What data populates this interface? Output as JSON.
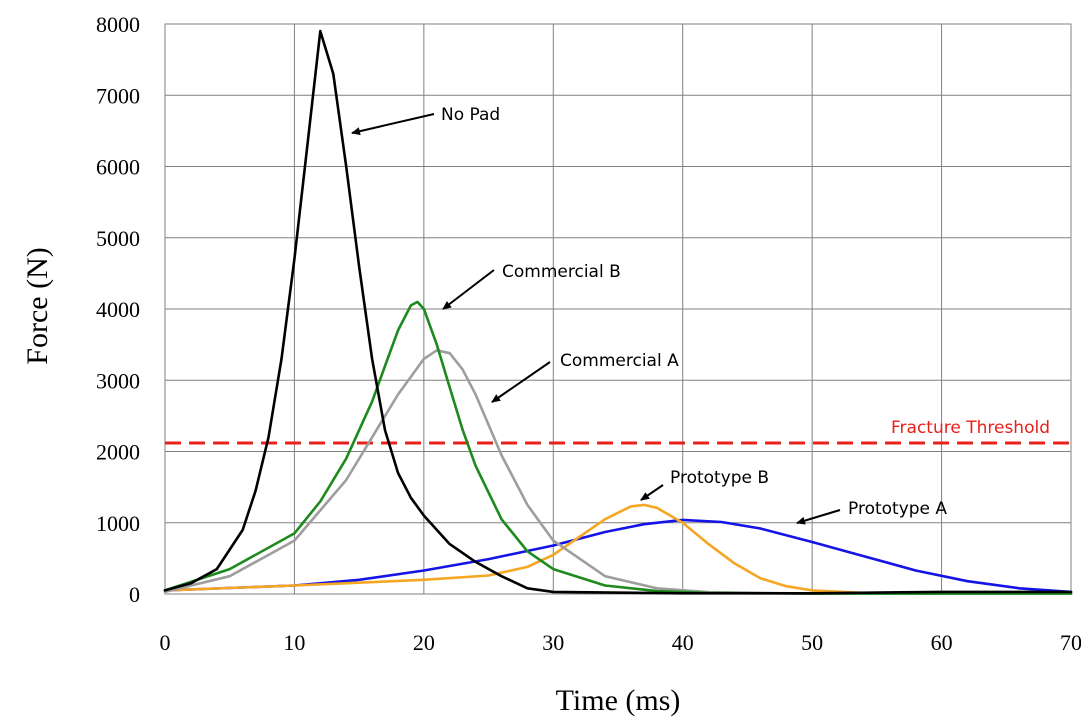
{
  "chart_data": {
    "type": "line",
    "xlabel": "Time (ms)",
    "ylabel": "Force (N)",
    "xlim": [
      0,
      70
    ],
    "ylim": [
      0,
      8000
    ],
    "xticks": [
      0,
      10,
      20,
      30,
      40,
      50,
      60,
      70
    ],
    "yticks": [
      0,
      1000,
      2000,
      3000,
      4000,
      5000,
      6000,
      7000,
      8000
    ],
    "grid": true,
    "threshold": {
      "label": "Fracture Threshold",
      "value": 2120,
      "color": "#e8201b"
    },
    "series": [
      {
        "name": "No Pad",
        "color": "#000000",
        "x": [
          0,
          2,
          4,
          6,
          7,
          8,
          9,
          10,
          11,
          12,
          13,
          14,
          15,
          16,
          17,
          18,
          19,
          20,
          21,
          22,
          24,
          26,
          28,
          30,
          40,
          50,
          60,
          70
        ],
        "y": [
          50,
          150,
          350,
          900,
          1450,
          2200,
          3300,
          4700,
          6300,
          7900,
          7300,
          6000,
          4600,
          3300,
          2300,
          1700,
          1350,
          1100,
          900,
          700,
          450,
          250,
          80,
          30,
          10,
          10,
          30,
          30
        ]
      },
      {
        "name": "Commercial B",
        "color": "#1e8a1e",
        "x": [
          0,
          5,
          10,
          12,
          14,
          16,
          17,
          18,
          19,
          19.5,
          20,
          21,
          22,
          23,
          24,
          26,
          28,
          30,
          34,
          38,
          42,
          50,
          60,
          70
        ],
        "y": [
          50,
          350,
          850,
          1300,
          1900,
          2700,
          3200,
          3700,
          4050,
          4100,
          4000,
          3500,
          2900,
          2300,
          1800,
          1050,
          600,
          350,
          120,
          40,
          15,
          5,
          5,
          5
        ]
      },
      {
        "name": "Commercial A",
        "color": "#9e9e9e",
        "x": [
          0,
          5,
          10,
          14,
          16,
          18,
          20,
          21,
          22,
          23,
          24,
          26,
          28,
          30,
          34,
          38,
          42,
          50,
          60,
          70
        ],
        "y": [
          30,
          250,
          750,
          1600,
          2200,
          2800,
          3300,
          3420,
          3380,
          3150,
          2800,
          1950,
          1250,
          750,
          250,
          80,
          25,
          5,
          5,
          5
        ]
      },
      {
        "name": "Prototype A",
        "color": "#1414e6",
        "x": [
          0,
          10,
          15,
          20,
          25,
          30,
          34,
          37,
          40,
          43,
          46,
          50,
          54,
          58,
          62,
          66,
          70
        ],
        "y": [
          50,
          120,
          200,
          330,
          490,
          680,
          870,
          980,
          1040,
          1010,
          920,
          730,
          530,
          330,
          180,
          80,
          30
        ]
      },
      {
        "name": "Prototype B",
        "color": "#f5a623",
        "x": [
          0,
          10,
          20,
          25,
          28,
          30,
          32,
          34,
          36,
          37,
          38,
          40,
          42,
          44,
          46,
          48,
          50,
          54,
          58,
          62,
          70
        ],
        "y": [
          50,
          120,
          200,
          260,
          380,
          550,
          800,
          1050,
          1230,
          1250,
          1210,
          1000,
          700,
          430,
          220,
          110,
          50,
          15,
          5,
          5,
          5
        ]
      }
    ],
    "annotations": [
      {
        "text": "No Pad",
        "series": "No Pad"
      },
      {
        "text": "Commercial B",
        "series": "Commercial B"
      },
      {
        "text": "Commercial A",
        "series": "Commercial A"
      },
      {
        "text": "Prototype B",
        "series": "Prototype B"
      },
      {
        "text": "Prototype A",
        "series": "Prototype A"
      }
    ]
  }
}
